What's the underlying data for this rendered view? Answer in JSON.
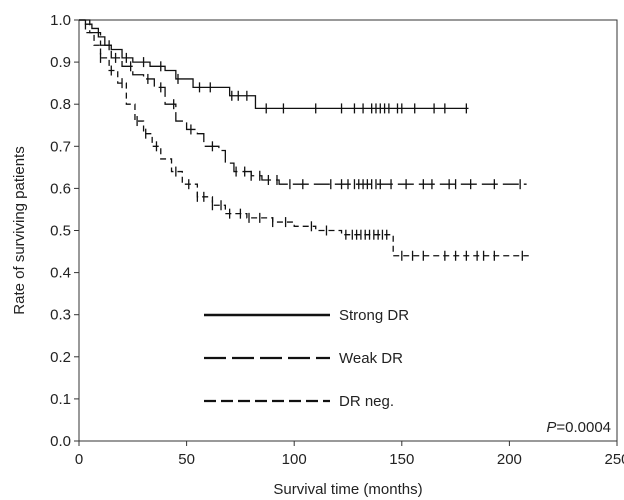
{
  "chart_data": {
    "type": "line",
    "xlabel": "Survival time (months)",
    "ylabel": "Rate of surviving patients",
    "xlim": [
      0,
      250
    ],
    "ylim": [
      0,
      1.0
    ],
    "x_ticks": [
      "0",
      "50",
      "100",
      "150",
      "200",
      "250"
    ],
    "y_ticks": [
      "0.0",
      "0.1",
      "0.2",
      "0.3",
      "0.4",
      "0.5",
      "0.6",
      "0.7",
      "0.8",
      "0.9",
      "1.0"
    ],
    "grid": false,
    "legend_position": "center-left",
    "annotation": {
      "italic": "P",
      "text": "=0.0004"
    },
    "series": [
      {
        "name": "Strong DR",
        "dash": "solid",
        "points": [
          [
            0,
            1.0
          ],
          [
            3,
            0.99
          ],
          [
            6,
            0.98
          ],
          [
            9,
            0.96
          ],
          [
            12,
            0.94
          ],
          [
            15,
            0.93
          ],
          [
            20,
            0.91
          ],
          [
            25,
            0.9
          ],
          [
            33,
            0.89
          ],
          [
            40,
            0.88
          ],
          [
            45,
            0.86
          ],
          [
            53,
            0.84
          ],
          [
            65,
            0.84
          ],
          [
            70,
            0.82
          ],
          [
            80,
            0.82
          ],
          [
            82,
            0.79
          ],
          [
            181,
            0.79
          ]
        ],
        "censor_x": [
          14,
          22,
          30,
          38,
          46,
          56,
          61,
          71,
          74,
          78,
          87,
          95,
          110,
          122,
          128,
          132,
          136,
          138,
          140,
          142,
          144,
          148,
          150,
          156,
          165,
          170,
          180
        ]
      },
      {
        "name": "Weak DR",
        "dash": "long-dash",
        "points": [
          [
            0,
            1.0
          ],
          [
            5,
            0.97
          ],
          [
            10,
            0.94
          ],
          [
            15,
            0.91
          ],
          [
            20,
            0.89
          ],
          [
            25,
            0.87
          ],
          [
            30,
            0.86
          ],
          [
            35,
            0.84
          ],
          [
            40,
            0.8
          ],
          [
            45,
            0.76
          ],
          [
            50,
            0.74
          ],
          [
            55,
            0.73
          ],
          [
            58,
            0.7
          ],
          [
            65,
            0.69
          ],
          [
            68,
            0.66
          ],
          [
            72,
            0.64
          ],
          [
            80,
            0.63
          ],
          [
            85,
            0.62
          ],
          [
            93,
            0.61
          ],
          [
            208,
            0.61
          ]
        ],
        "censor_x": [
          17,
          24,
          32,
          38,
          44,
          52,
          62,
          73,
          77,
          80,
          84,
          88,
          92,
          98,
          104,
          117,
          122,
          125,
          128,
          130,
          132,
          134,
          136,
          138,
          140,
          145,
          152,
          160,
          164,
          172,
          175,
          182,
          193,
          205
        ]
      },
      {
        "name": "DR neg.",
        "dash": "short-dash",
        "points": [
          [
            0,
            1.0
          ],
          [
            3,
            0.97
          ],
          [
            7,
            0.94
          ],
          [
            10,
            0.91
          ],
          [
            14,
            0.88
          ],
          [
            18,
            0.85
          ],
          [
            22,
            0.8
          ],
          [
            26,
            0.76
          ],
          [
            30,
            0.73
          ],
          [
            34,
            0.7
          ],
          [
            38,
            0.67
          ],
          [
            43,
            0.64
          ],
          [
            48,
            0.61
          ],
          [
            55,
            0.58
          ],
          [
            62,
            0.56
          ],
          [
            68,
            0.54
          ],
          [
            78,
            0.53
          ],
          [
            90,
            0.52
          ],
          [
            100,
            0.51
          ],
          [
            110,
            0.5
          ],
          [
            122,
            0.49
          ],
          [
            145,
            0.49
          ],
          [
            146,
            0.44
          ],
          [
            209,
            0.44
          ]
        ],
        "censor_x": [
          10,
          15,
          20,
          27,
          31,
          36,
          45,
          51,
          55,
          58,
          62,
          66,
          70,
          75,
          79,
          84,
          90,
          96,
          108,
          115,
          124,
          127,
          129,
          131,
          133,
          135,
          137,
          139,
          141,
          143,
          150,
          155,
          160,
          170,
          175,
          180,
          185,
          188,
          193,
          206
        ]
      }
    ]
  }
}
